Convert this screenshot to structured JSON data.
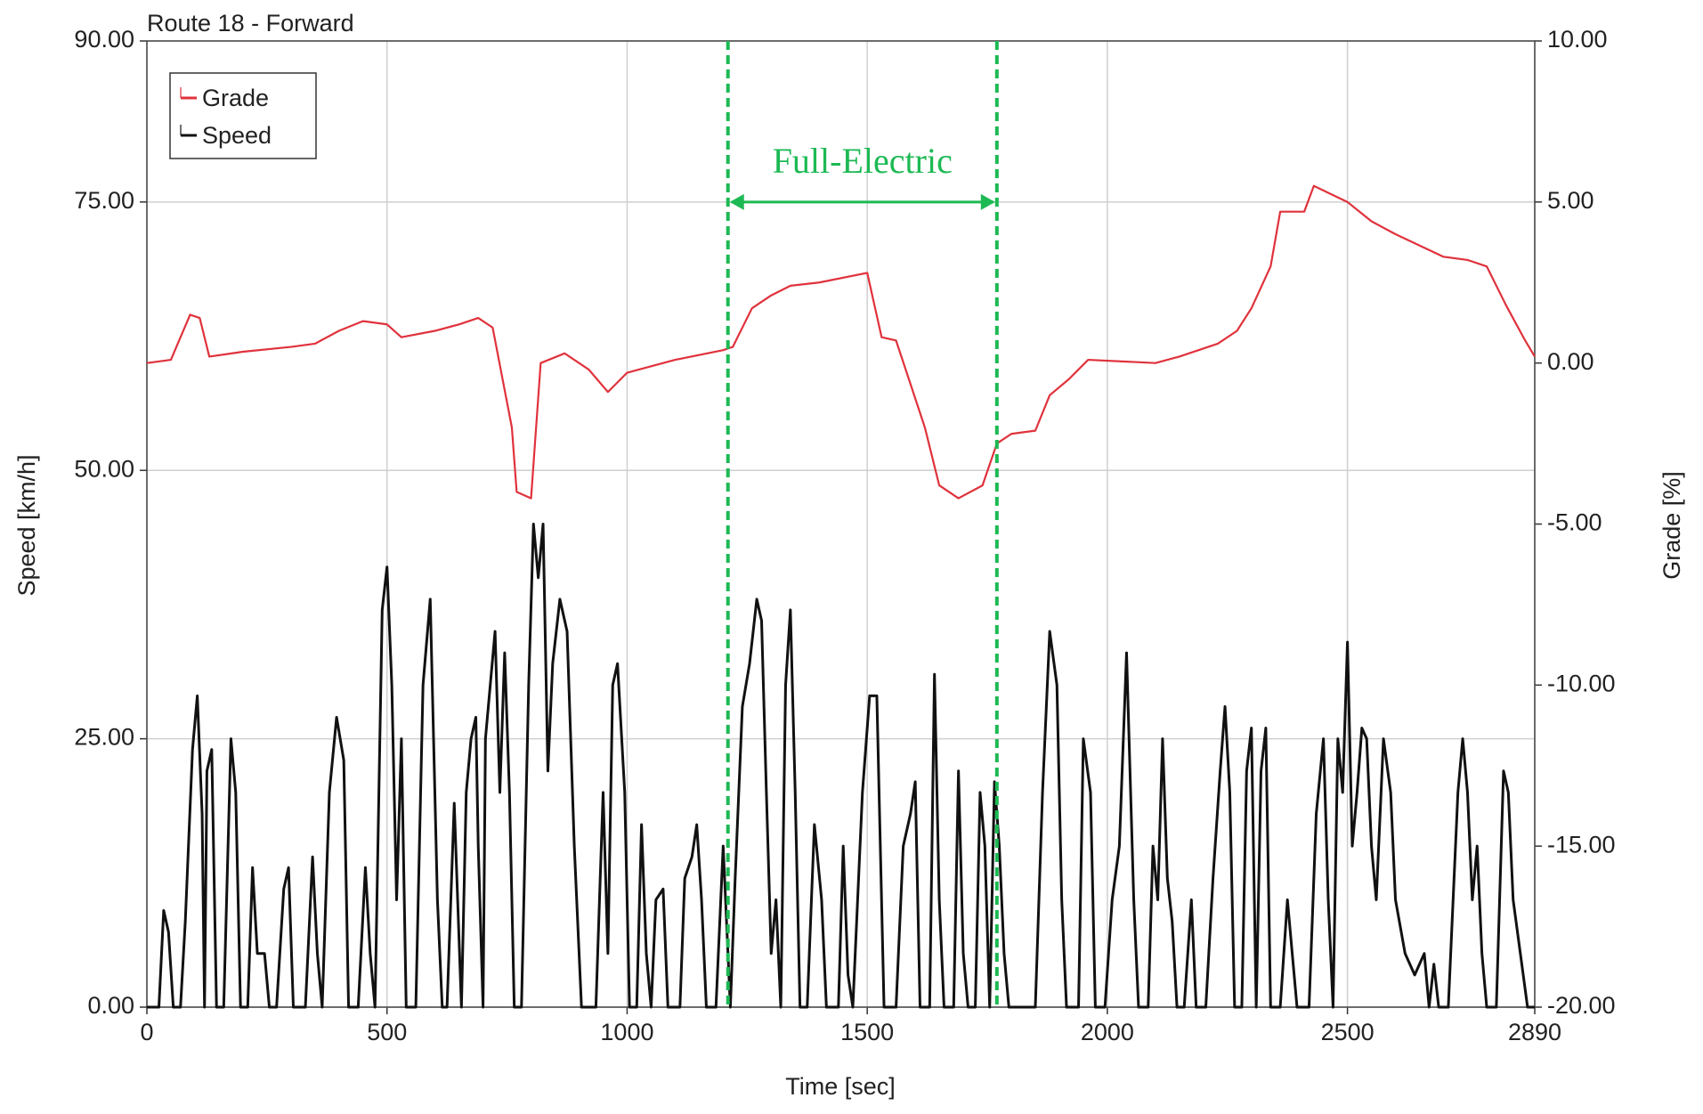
{
  "chart_data": {
    "type": "line",
    "title": "Route 18 - Forward",
    "xlabel": "Time [sec]",
    "ylabel": "Speed [km/h]",
    "y2label": "Grade [%]",
    "xlim": [
      0,
      2890
    ],
    "xticks": [
      0,
      500,
      1000,
      1500,
      2000,
      2500,
      2890
    ],
    "ylim": [
      0,
      90
    ],
    "yticks": [
      {
        "value": 0,
        "label": "0.00"
      },
      {
        "value": 25,
        "label": "25.00"
      },
      {
        "value": 50,
        "label": "50.00"
      },
      {
        "value": 75,
        "label": "75.00"
      },
      {
        "value": 90,
        "label": "90.00"
      }
    ],
    "y2lim": [
      -20,
      10
    ],
    "y2ticks": [
      {
        "value": -20,
        "label": "-20.00"
      },
      {
        "value": -15,
        "label": "-15.00"
      },
      {
        "value": -10,
        "label": "-10.00"
      },
      {
        "value": -5,
        "label": "-5.00"
      },
      {
        "value": 0,
        "label": "0.00"
      },
      {
        "value": 5,
        "label": "5.00"
      },
      {
        "value": 10,
        "label": "10.00"
      }
    ],
    "grid": true,
    "legend": "upper left",
    "annotation": {
      "text": "Full-Electric",
      "x": [
        1210,
        1770
      ],
      "y": 75,
      "color": "#1db954"
    },
    "series": [
      {
        "name": "Grade",
        "color": "#e0323c",
        "axis": "y2",
        "x": [
          0,
          50,
          90,
          110,
          130,
          200,
          300,
          350,
          400,
          450,
          500,
          530,
          600,
          650,
          690,
          720,
          760,
          770,
          800,
          820,
          870,
          920,
          960,
          1000,
          1100,
          1200,
          1220,
          1260,
          1300,
          1340,
          1400,
          1500,
          1530,
          1560,
          1620,
          1650,
          1690,
          1740,
          1770,
          1800,
          1850,
          1880,
          1920,
          1960,
          2100,
          2150,
          2230,
          2270,
          2300,
          2340,
          2360,
          2410,
          2430,
          2500,
          2550,
          2600,
          2700,
          2750,
          2790,
          2830,
          2870,
          2890
        ],
        "values": [
          0.0,
          0.1,
          1.5,
          1.4,
          0.2,
          0.35,
          0.5,
          0.6,
          1.0,
          1.3,
          1.2,
          0.8,
          1.0,
          1.2,
          1.4,
          1.1,
          -2.0,
          -4.0,
          -4.2,
          0.0,
          0.3,
          -0.2,
          -0.9,
          -0.3,
          0.1,
          0.4,
          0.5,
          1.7,
          2.1,
          2.4,
          2.5,
          2.8,
          0.8,
          0.7,
          -2.0,
          -3.8,
          -4.2,
          -3.8,
          -2.5,
          -2.2,
          -2.1,
          -1.0,
          -0.5,
          0.1,
          0.0,
          0.2,
          0.6,
          1.0,
          1.7,
          3.0,
          4.7,
          4.7,
          5.5,
          5.0,
          4.4,
          4.0,
          3.3,
          3.2,
          3.0,
          1.8,
          0.7,
          0.2
        ]
      },
      {
        "name": "Speed",
        "color": "#111111",
        "x": [
          0,
          25,
          35,
          45,
          55,
          70,
          80,
          95,
          105,
          115,
          120,
          125,
          135,
          145,
          160,
          175,
          185,
          195,
          210,
          220,
          230,
          245,
          255,
          270,
          285,
          295,
          305,
          330,
          345,
          355,
          365,
          380,
          395,
          410,
          420,
          440,
          455,
          465,
          475,
          490,
          500,
          510,
          520,
          530,
          540,
          560,
          575,
          590,
          605,
          615,
          625,
          640,
          655,
          665,
          675,
          685,
          690,
          700,
          705,
          715,
          725,
          735,
          745,
          755,
          765,
          780,
          795,
          805,
          815,
          825,
          835,
          845,
          860,
          875,
          890,
          905,
          935,
          950,
          960,
          970,
          980,
          995,
          1005,
          1020,
          1030,
          1040,
          1050,
          1060,
          1075,
          1085,
          1110,
          1120,
          1135,
          1145,
          1155,
          1165,
          1185,
          1200,
          1215,
          1225,
          1240,
          1255,
          1270,
          1280,
          1290,
          1300,
          1310,
          1320,
          1330,
          1340,
          1350,
          1360,
          1375,
          1390,
          1405,
          1415,
          1440,
          1450,
          1460,
          1470,
          1490,
          1505,
          1520,
          1535,
          1560,
          1575,
          1590,
          1600,
          1610,
          1630,
          1640,
          1650,
          1660,
          1680,
          1690,
          1700,
          1710,
          1725,
          1735,
          1745,
          1755,
          1765,
          1775,
          1785,
          1795,
          1850,
          1865,
          1880,
          1895,
          1905,
          1915,
          1940,
          1950,
          1965,
          1975,
          1995,
          2010,
          2025,
          2040,
          2055,
          2065,
          2085,
          2095,
          2105,
          2115,
          2125,
          2135,
          2145,
          2160,
          2175,
          2185,
          2205,
          2220,
          2235,
          2245,
          2255,
          2265,
          2280,
          2290,
          2300,
          2310,
          2320,
          2330,
          2340,
          2360,
          2375,
          2385,
          2395,
          2420,
          2435,
          2450,
          2460,
          2470,
          2480,
          2490,
          2500,
          2510,
          2520,
          2530,
          2540,
          2550,
          2560,
          2575,
          2590,
          2600,
          2620,
          2640,
          2660,
          2670,
          2680,
          2690,
          2710,
          2730,
          2740,
          2750,
          2760,
          2770,
          2780,
          2790,
          2810,
          2825,
          2835,
          2845,
          2860,
          2875,
          2890
        ],
        "values": [
          0,
          0,
          9,
          7,
          0,
          0,
          8,
          24,
          29,
          18,
          0,
          22,
          24,
          0,
          0,
          25,
          20,
          0,
          0,
          13,
          5,
          5,
          0,
          0,
          11,
          13,
          0,
          0,
          14,
          5,
          0,
          20,
          27,
          23,
          0,
          0,
          13,
          5,
          0,
          37,
          41,
          30,
          10,
          25,
          0,
          0,
          30,
          38,
          10,
          0,
          0,
          19,
          0,
          20,
          25,
          27,
          15,
          0,
          25,
          30,
          35,
          20,
          33,
          20,
          0,
          0,
          30,
          45,
          40,
          45,
          22,
          32,
          38,
          35,
          15,
          0,
          0,
          20,
          5,
          30,
          32,
          20,
          0,
          0,
          17,
          5,
          0,
          10,
          11,
          0,
          0,
          12,
          14,
          17,
          10,
          0,
          0,
          15,
          0,
          12,
          28,
          32,
          38,
          36,
          20,
          5,
          10,
          0,
          30,
          37,
          20,
          0,
          0,
          17,
          10,
          0,
          0,
          15,
          3,
          0,
          20,
          29,
          29,
          0,
          0,
          15,
          18,
          21,
          0,
          0,
          31,
          10,
          0,
          0,
          22,
          5,
          0,
          0,
          20,
          15,
          0,
          21,
          15,
          5,
          0,
          0,
          20,
          35,
          30,
          10,
          0,
          0,
          25,
          20,
          0,
          0,
          10,
          15,
          33,
          10,
          0,
          0,
          15,
          10,
          25,
          12,
          8,
          0,
          0,
          10,
          0,
          0,
          12,
          22,
          28,
          20,
          0,
          0,
          22,
          26,
          0,
          22,
          26,
          0,
          0,
          10,
          5,
          0,
          0,
          18,
          25,
          10,
          0,
          25,
          20,
          34,
          15,
          20,
          26,
          25,
          15,
          10,
          25,
          20,
          10,
          5,
          3,
          5,
          0,
          4,
          0,
          0,
          20,
          25,
          20,
          10,
          15,
          5,
          0,
          0,
          22,
          20,
          10,
          5,
          0,
          0
        ]
      }
    ]
  }
}
